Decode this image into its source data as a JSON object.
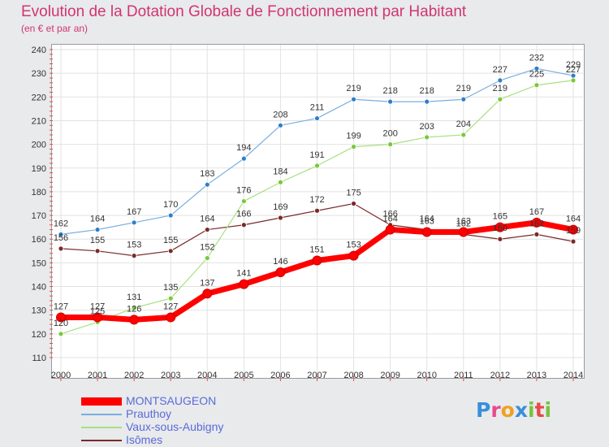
{
  "title": "Evolution de la Dotation Globale de Fonctionnement par Habitant",
  "subtitle": "(en € et par an)",
  "logo": {
    "text": "Proxiti",
    "letters": [
      {
        "ch": "P",
        "color": "#3a8fd8"
      },
      {
        "ch": "r",
        "color": "#e84a8a"
      },
      {
        "ch": "o",
        "color": "#f0a020"
      },
      {
        "ch": "x",
        "color": "#3a8fd8"
      },
      {
        "ch": "i",
        "color": "#7ac142"
      },
      {
        "ch": "t",
        "color": "#e84a4a"
      },
      {
        "ch": "i",
        "color": "#7ac142"
      }
    ]
  },
  "chart_data": {
    "type": "line",
    "x": [
      2000,
      2001,
      2002,
      2003,
      2004,
      2005,
      2006,
      2007,
      2008,
      2009,
      2010,
      2011,
      2012,
      2013,
      2014
    ],
    "ylim": [
      110,
      240
    ],
    "yticks": [
      110,
      120,
      130,
      140,
      150,
      160,
      170,
      180,
      190,
      200,
      210,
      220,
      230,
      240
    ],
    "grid": true,
    "legend_position": "bottom-left",
    "series": [
      {
        "name": "Isômes",
        "color": "#7a2a2a",
        "marker": "#7a2a2a",
        "width": 1.2,
        "values": [
          156,
          155,
          153,
          155,
          164,
          166,
          169,
          172,
          175,
          166,
          164,
          162,
          160,
          162,
          159
        ]
      },
      {
        "name": "Vaux-sous-Aubigny",
        "color": "#a8e080",
        "marker": "#77c93a",
        "width": 1.2,
        "values": [
          120,
          125,
          131,
          135,
          152,
          176,
          184,
          191,
          199,
          200,
          203,
          204,
          219,
          225,
          227
        ]
      },
      {
        "name": "Prauthoy",
        "color": "#78aee0",
        "marker": "#2e7ec8",
        "width": 1.2,
        "values": [
          162,
          164,
          167,
          170,
          183,
          194,
          208,
          211,
          219,
          218,
          218,
          219,
          227,
          232,
          229
        ]
      },
      {
        "name": "MONTSAUGEON",
        "color": "#ff0000",
        "marker": "#ff0000",
        "width": 7,
        "values": [
          127,
          127,
          126,
          127,
          137,
          141,
          146,
          151,
          153,
          164,
          163,
          163,
          165,
          167,
          164
        ]
      }
    ]
  }
}
